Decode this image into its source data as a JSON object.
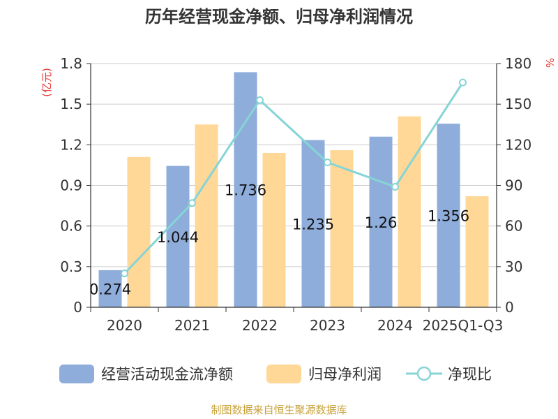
{
  "chart_data": {
    "type": "bar",
    "title": "历年经营现金净额、归母净利润情况",
    "categories": [
      "2020",
      "2021",
      "2022",
      "2023",
      "2024",
      "2025Q1-Q3"
    ],
    "series": [
      {
        "name": "经营活动现金流净额",
        "type": "bar",
        "axis": "left",
        "values": [
          0.274,
          1.044,
          1.736,
          1.235,
          1.26,
          1.356
        ],
        "data_labels": [
          "0.274",
          "1.044",
          "1.736",
          "1.235",
          "1.26",
          "1.356"
        ],
        "color": "#8EADDB"
      },
      {
        "name": "归母净利润",
        "type": "bar",
        "axis": "left",
        "values": [
          1.11,
          1.35,
          1.14,
          1.16,
          1.41,
          0.82
        ],
        "color": "#FFD797"
      },
      {
        "name": "净现比",
        "type": "line",
        "axis": "right",
        "values": [
          25,
          77,
          153,
          107,
          89,
          166
        ],
        "color": "#86D4D6"
      }
    ],
    "y_left": {
      "label": "(亿元)",
      "ylim": [
        0,
        1.8
      ],
      "ticks": [
        "0",
        "0.3",
        "0.6",
        "0.9",
        "1.2",
        "1.5",
        "1.8"
      ]
    },
    "y_right": {
      "label": "%",
      "ylim": [
        0,
        180
      ],
      "ticks": [
        "0",
        "30",
        "60",
        "90",
        "120",
        "150",
        "180"
      ]
    },
    "grid": true,
    "legend_position": "bottom"
  },
  "source": "制图数据来自恒生聚源数据库"
}
